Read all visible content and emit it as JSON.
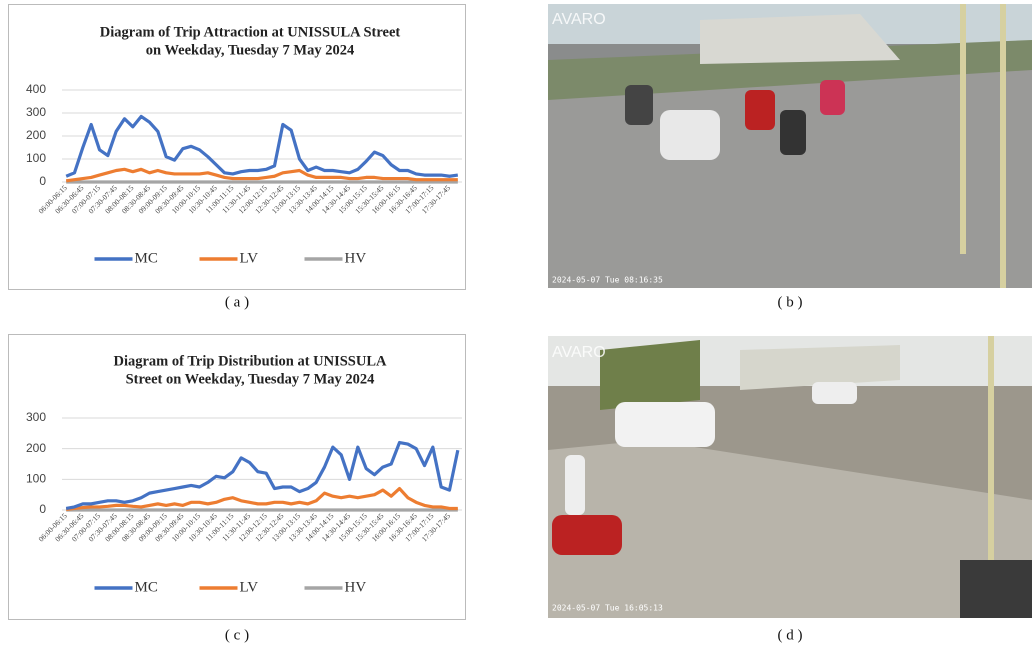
{
  "chart_data": [
    {
      "type": "line",
      "title": [
        "Diagram of Trip Attraction at UNISSULA Street",
        "on Weekday, Tuesday 7 May 2024"
      ],
      "categories": [
        "06:00-06:15",
        null,
        "06:30-06:45",
        null,
        "07:00-07:15",
        null,
        "07:30-07:45",
        null,
        "08:00-08:15",
        null,
        "08:30-08:45",
        null,
        "09:00-09:15",
        null,
        "09:30-09:45",
        null,
        "10:00-10:15",
        null,
        "10:30-10:45",
        null,
        "11:00-11:15",
        null,
        "11:30-11:45",
        null,
        "12:00-12:15",
        null,
        "12:30-12:45",
        null,
        "13:00-13:15",
        null,
        "13:30-13:45",
        null,
        "14:00-14:15",
        null,
        "14:30-14:45",
        null,
        "15:00-15:15",
        null,
        "15:30-15:45",
        null,
        "16:00-16:15",
        null,
        "16:30-16:45",
        null,
        "17:00-17:15",
        null,
        "17:30-17:45",
        null
      ],
      "series": [
        {
          "name": "MC",
          "color": "#4472c4",
          "values": [
            25,
            40,
            150,
            250,
            140,
            115,
            220,
            275,
            240,
            285,
            260,
            220,
            110,
            95,
            145,
            155,
            140,
            110,
            75,
            40,
            35,
            45,
            50,
            50,
            55,
            70,
            250,
            225,
            100,
            50,
            65,
            50,
            50,
            45,
            40,
            55,
            90,
            130,
            115,
            75,
            50,
            50,
            35,
            30,
            30,
            30,
            25,
            30
          ]
        },
        {
          "name": "LV",
          "color": "#ed7d31",
          "values": [
            5,
            10,
            15,
            20,
            30,
            40,
            50,
            55,
            45,
            55,
            40,
            50,
            40,
            35,
            35,
            35,
            35,
            40,
            30,
            20,
            15,
            15,
            15,
            15,
            20,
            25,
            40,
            45,
            50,
            30,
            20,
            20,
            20,
            20,
            15,
            15,
            20,
            20,
            15,
            15,
            15,
            15,
            10,
            10,
            10,
            10,
            10,
            10
          ]
        },
        {
          "name": "HV",
          "color": "#a5a5a5",
          "values": [
            0,
            0,
            0,
            0,
            0,
            0,
            0,
            0,
            0,
            0,
            0,
            0,
            0,
            0,
            0,
            0,
            0,
            0,
            0,
            0,
            0,
            0,
            0,
            0,
            0,
            0,
            0,
            0,
            0,
            0,
            0,
            0,
            0,
            0,
            0,
            0,
            0,
            0,
            0,
            0,
            0,
            0,
            0,
            0,
            0,
            0,
            0,
            0
          ]
        }
      ],
      "ylim": [
        0,
        400
      ],
      "yticks": [
        0,
        100,
        200,
        300,
        400
      ],
      "grid": true,
      "legend": "bottom"
    },
    {
      "type": "line",
      "title": [
        "Diagram of Trip Distribution at UNISSULA",
        "Street on Weekday, Tuesday  7 May 2024"
      ],
      "categories": [
        "06:00-06:15",
        null,
        "06:30-06:45",
        null,
        "07:00-07:15",
        null,
        "07:30-07:45",
        null,
        "08:00-08:15",
        null,
        "08:30-08:45",
        null,
        "09:00-09:15",
        null,
        "09:30-09:45",
        null,
        "10:00-10:15",
        null,
        "10:30-10:45",
        null,
        "11:00-11:15",
        null,
        "11:30-11:45",
        null,
        "12:00-12:15",
        null,
        "12:30-12:45",
        null,
        "13:00-13:15",
        null,
        "13:30-13:45",
        null,
        "14:00-14:15",
        null,
        "14:30-14:45",
        null,
        "15:00-15:15",
        null,
        "15:30-15:45",
        null,
        "16:00-16:15",
        null,
        "16:30-16:45",
        null,
        "17:00-17:15",
        null,
        "17:30-17:45",
        null
      ],
      "series": [
        {
          "name": "MC",
          "color": "#4472c4",
          "values": [
            5,
            10,
            20,
            20,
            25,
            30,
            30,
            25,
            30,
            40,
            55,
            60,
            65,
            70,
            75,
            80,
            75,
            90,
            110,
            105,
            125,
            170,
            155,
            125,
            120,
            70,
            75,
            75,
            60,
            70,
            90,
            140,
            205,
            180,
            100,
            205,
            135,
            115,
            140,
            150,
            220,
            215,
            200,
            145,
            205,
            75,
            65,
            195
          ]
        },
        {
          "name": "LV",
          "color": "#ed7d31",
          "values": [
            2,
            5,
            8,
            10,
            10,
            12,
            15,
            15,
            12,
            10,
            15,
            20,
            15,
            20,
            15,
            25,
            25,
            20,
            25,
            35,
            40,
            30,
            25,
            20,
            20,
            25,
            25,
            20,
            25,
            20,
            30,
            55,
            45,
            40,
            45,
            40,
            45,
            50,
            65,
            45,
            70,
            40,
            25,
            15,
            10,
            10,
            5,
            5
          ]
        },
        {
          "name": "HV",
          "color": "#a5a5a5",
          "values": [
            0,
            0,
            0,
            0,
            0,
            0,
            0,
            0,
            0,
            0,
            0,
            0,
            0,
            0,
            0,
            0,
            0,
            0,
            0,
            0,
            0,
            0,
            0,
            0,
            0,
            0,
            0,
            0,
            0,
            0,
            0,
            0,
            0,
            0,
            0,
            0,
            0,
            0,
            0,
            0,
            0,
            0,
            0,
            0,
            0,
            0,
            0,
            0
          ]
        }
      ],
      "ylim": [
        0,
        300
      ],
      "yticks": [
        0,
        100,
        200,
        300
      ],
      "grid": true,
      "legend": "bottom"
    }
  ],
  "captions": [
    "( a )",
    "( b )",
    "( c )",
    "( d )"
  ],
  "photos": [
    {
      "logo": "AVARO",
      "timestamp": "2024-05-07 Tue 08:16:35"
    },
    {
      "logo": "AVARO",
      "timestamp": "2024-05-07 Tue 16:05:13"
    }
  ]
}
